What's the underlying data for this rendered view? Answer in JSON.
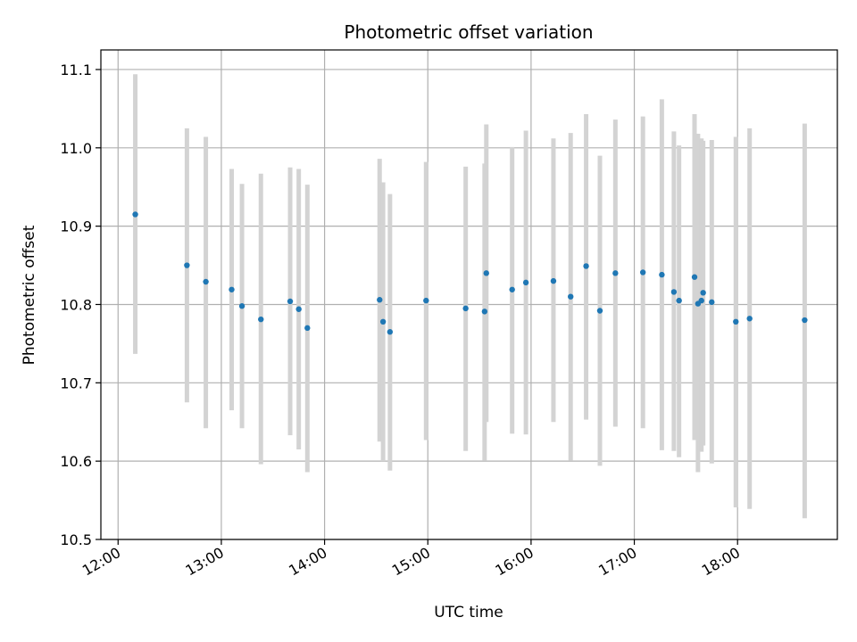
{
  "chart_data": {
    "type": "scatter",
    "title": "Photometric offset variation",
    "xlabel": "UTC time",
    "ylabel": "Photometric offset",
    "xlim": [
      "11:50",
      "18:58"
    ],
    "ylim": [
      10.5,
      11.125
    ],
    "x_ticks": [
      "12:00",
      "13:00",
      "14:00",
      "15:00",
      "16:00",
      "17:00",
      "18:00"
    ],
    "y_ticks": [
      "10.5",
      "10.6",
      "10.7",
      "10.8",
      "10.9",
      "11.0",
      "11.1"
    ],
    "grid": true,
    "colors": {
      "point": "#1f77b4",
      "errorbar": "#d3d3d3",
      "grid": "#b0b0b0"
    },
    "points": [
      {
        "x": "12:10",
        "y": 10.915,
        "lo": 10.737,
        "hi": 11.094
      },
      {
        "x": "12:40",
        "y": 10.85,
        "lo": 10.675,
        "hi": 11.025
      },
      {
        "x": "12:51",
        "y": 10.829,
        "lo": 10.642,
        "hi": 11.014
      },
      {
        "x": "13:06",
        "y": 10.819,
        "lo": 10.665,
        "hi": 10.973
      },
      {
        "x": "13:12",
        "y": 10.798,
        "lo": 10.642,
        "hi": 10.954
      },
      {
        "x": "13:23",
        "y": 10.781,
        "lo": 10.596,
        "hi": 10.967
      },
      {
        "x": "13:40",
        "y": 10.804,
        "lo": 10.633,
        "hi": 10.975
      },
      {
        "x": "13:45",
        "y": 10.794,
        "lo": 10.615,
        "hi": 10.973
      },
      {
        "x": "13:50",
        "y": 10.77,
        "lo": 10.586,
        "hi": 10.953
      },
      {
        "x": "14:32",
        "y": 10.806,
        "lo": 10.625,
        "hi": 10.986
      },
      {
        "x": "14:34",
        "y": 10.778,
        "lo": 10.6,
        "hi": 10.956
      },
      {
        "x": "14:38",
        "y": 10.765,
        "lo": 10.588,
        "hi": 10.941
      },
      {
        "x": "14:59",
        "y": 10.805,
        "lo": 10.627,
        "hi": 10.982
      },
      {
        "x": "15:22",
        "y": 10.795,
        "lo": 10.613,
        "hi": 10.976
      },
      {
        "x": "15:33",
        "y": 10.791,
        "lo": 10.601,
        "hi": 10.98
      },
      {
        "x": "15:34",
        "y": 10.84,
        "lo": 10.65,
        "hi": 11.03
      },
      {
        "x": "15:49",
        "y": 10.819,
        "lo": 10.635,
        "hi": 11.001
      },
      {
        "x": "15:57",
        "y": 10.828,
        "lo": 10.634,
        "hi": 11.022
      },
      {
        "x": "16:13",
        "y": 10.83,
        "lo": 10.65,
        "hi": 11.012
      },
      {
        "x": "16:23",
        "y": 10.81,
        "lo": 10.601,
        "hi": 11.019
      },
      {
        "x": "16:32",
        "y": 10.849,
        "lo": 10.653,
        "hi": 11.043
      },
      {
        "x": "16:40",
        "y": 10.792,
        "lo": 10.594,
        "hi": 10.99
      },
      {
        "x": "16:49",
        "y": 10.84,
        "lo": 10.644,
        "hi": 11.036
      },
      {
        "x": "17:05",
        "y": 10.841,
        "lo": 10.642,
        "hi": 11.04
      },
      {
        "x": "17:16",
        "y": 10.838,
        "lo": 10.614,
        "hi": 11.062
      },
      {
        "x": "17:23",
        "y": 10.816,
        "lo": 10.613,
        "hi": 11.021
      },
      {
        "x": "17:26",
        "y": 10.805,
        "lo": 10.605,
        "hi": 11.003
      },
      {
        "x": "17:35",
        "y": 10.835,
        "lo": 10.627,
        "hi": 11.043
      },
      {
        "x": "17:37",
        "y": 10.801,
        "lo": 10.586,
        "hi": 11.018
      },
      {
        "x": "17:39",
        "y": 10.805,
        "lo": 10.612,
        "hi": 11.012
      },
      {
        "x": "17:40",
        "y": 10.815,
        "lo": 10.62,
        "hi": 11.009
      },
      {
        "x": "17:45",
        "y": 10.803,
        "lo": 10.597,
        "hi": 11.01
      },
      {
        "x": "17:59",
        "y": 10.778,
        "lo": 10.541,
        "hi": 11.014
      },
      {
        "x": "18:07",
        "y": 10.782,
        "lo": 10.539,
        "hi": 11.025
      },
      {
        "x": "18:39",
        "y": 10.78,
        "lo": 10.527,
        "hi": 11.031
      }
    ]
  }
}
